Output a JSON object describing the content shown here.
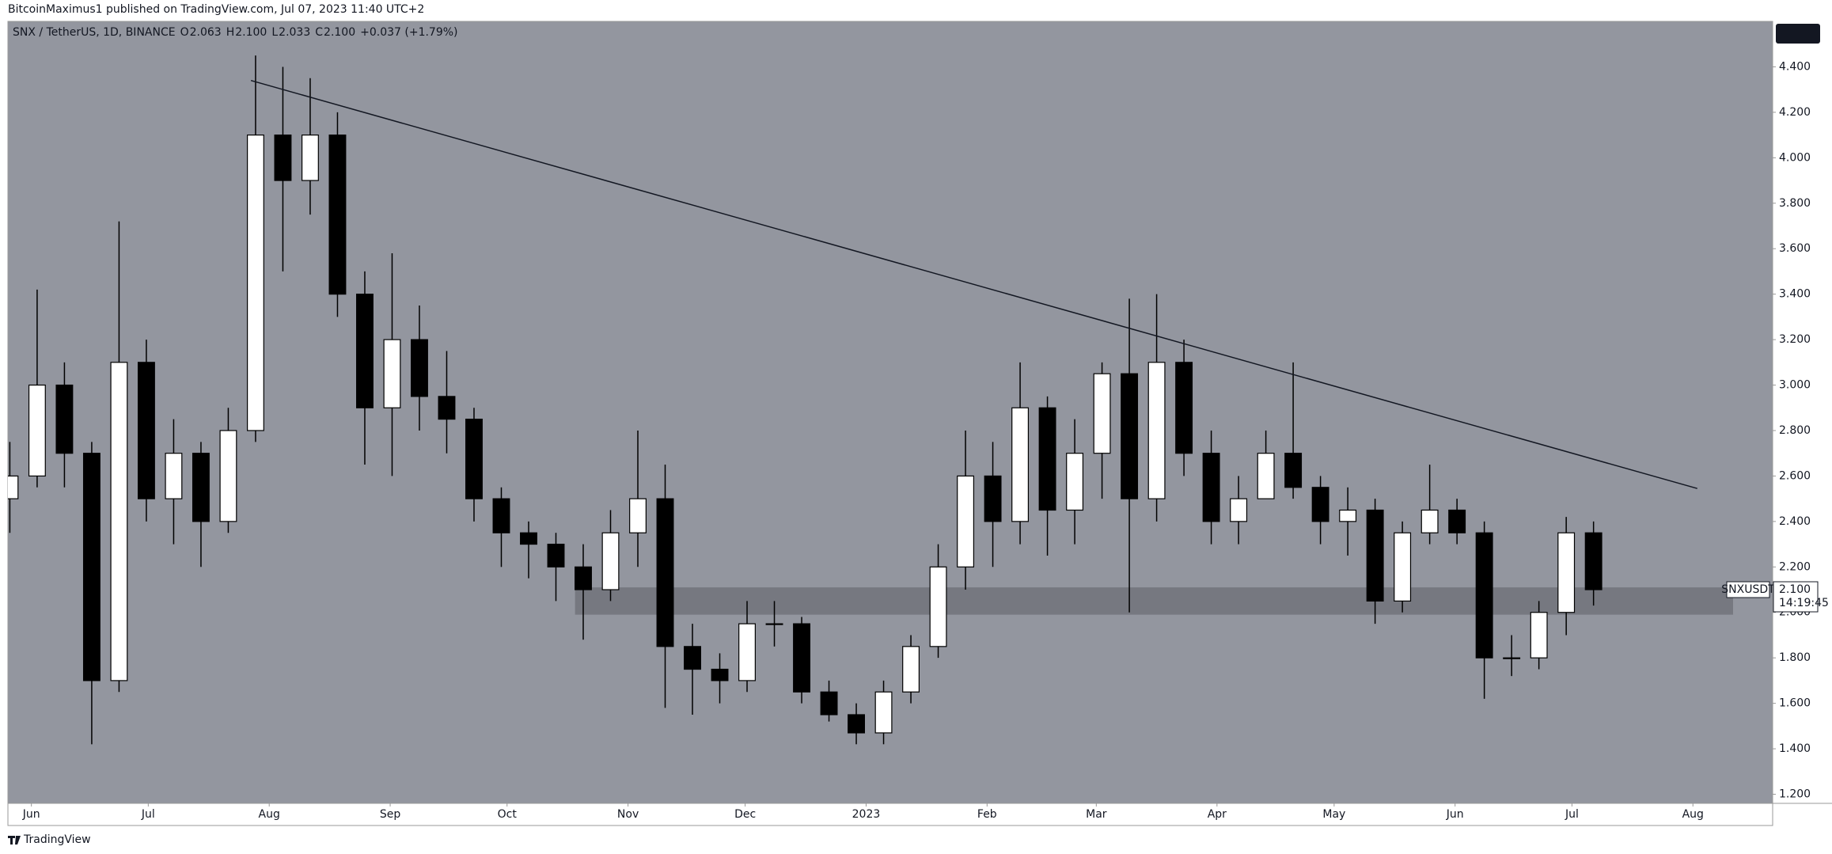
{
  "header": {
    "text": "BitcoinMaximus1 published on TradingView.com, Jul 07, 2023 11:40 UTC+2"
  },
  "footer": {
    "text": "TradingView"
  },
  "chart_data": {
    "type": "candlestick",
    "legend": {
      "symbol": "SNX / TetherUS, 1D, BINANCE",
      "ohlc": [
        {
          "key": "O",
          "text": "2.063"
        },
        {
          "key": "H",
          "text": "2.100"
        },
        {
          "key": "L",
          "text": "2.033"
        },
        {
          "key": "C",
          "text": "2.100"
        }
      ],
      "change": "+0.037 (+1.79%)"
    },
    "open": [
      2.5,
      2.6,
      3.0,
      2.7,
      1.7,
      3.1,
      2.5,
      2.7,
      2.4,
      2.8,
      4.1,
      3.9,
      4.1,
      3.4,
      2.9,
      3.2,
      2.95,
      2.85,
      2.5,
      2.35,
      2.3,
      2.2,
      2.1,
      2.35,
      2.5,
      1.85,
      1.75,
      1.7,
      1.95,
      1.95,
      1.65,
      1.55,
      1.47,
      1.65,
      1.85,
      2.2,
      2.6,
      2.4,
      2.9,
      2.45,
      2.7,
      3.05,
      2.5,
      3.1,
      2.7,
      2.4,
      2.5,
      2.7,
      2.55,
      2.4,
      2.45,
      2.05,
      2.35,
      2.45,
      2.35,
      1.8,
      1.8,
      2.0,
      2.35
    ],
    "high": [
      2.75,
      3.42,
      3.1,
      2.75,
      3.72,
      3.2,
      2.85,
      2.75,
      2.9,
      4.45,
      4.4,
      4.35,
      4.2,
      3.5,
      3.58,
      3.35,
      3.15,
      2.9,
      2.55,
      2.4,
      2.35,
      2.3,
      2.45,
      2.8,
      2.65,
      1.95,
      1.82,
      2.05,
      2.05,
      1.98,
      1.7,
      1.6,
      1.7,
      1.9,
      2.3,
      2.8,
      2.75,
      3.1,
      2.95,
      2.85,
      3.1,
      3.38,
      3.4,
      3.2,
      2.8,
      2.6,
      2.8,
      3.1,
      2.6,
      2.55,
      2.5,
      2.4,
      2.65,
      2.5,
      2.4,
      1.9,
      2.05,
      2.42,
      2.4
    ],
    "low": [
      2.35,
      2.55,
      2.55,
      1.42,
      1.65,
      2.4,
      2.3,
      2.2,
      2.35,
      2.75,
      3.5,
      3.75,
      3.3,
      2.65,
      2.6,
      2.8,
      2.7,
      2.4,
      2.2,
      2.15,
      2.05,
      1.88,
      2.05,
      2.2,
      1.58,
      1.55,
      1.6,
      1.65,
      1.85,
      1.6,
      1.52,
      1.42,
      1.42,
      1.6,
      1.8,
      2.1,
      2.2,
      2.3,
      2.25,
      2.3,
      2.5,
      2.0,
      2.4,
      2.6,
      2.3,
      2.3,
      2.5,
      2.5,
      2.3,
      2.25,
      1.95,
      2.0,
      2.3,
      2.3,
      1.62,
      1.72,
      1.75,
      1.9,
      2.03
    ],
    "close": [
      2.6,
      3.0,
      2.7,
      1.7,
      3.1,
      2.5,
      2.7,
      2.4,
      2.8,
      4.1,
      3.9,
      4.1,
      3.4,
      2.9,
      3.2,
      2.95,
      2.85,
      2.5,
      2.35,
      2.3,
      2.2,
      2.1,
      2.35,
      2.5,
      1.85,
      1.75,
      1.7,
      1.95,
      1.95,
      1.65,
      1.55,
      1.47,
      1.65,
      1.85,
      2.2,
      2.6,
      2.4,
      2.9,
      2.45,
      2.7,
      3.05,
      2.5,
      3.1,
      2.7,
      2.4,
      2.5,
      2.7,
      2.55,
      2.4,
      2.45,
      2.05,
      2.35,
      2.45,
      2.35,
      1.8,
      1.8,
      2.0,
      2.35,
      2.1
    ],
    "up_color": "#ffffff",
    "down_color": "#000000",
    "background": "#93969f",
    "xlim": [
      0.43,
      65.06
    ],
    "xticks": [
      {
        "value": 1.29,
        "label": "Jun"
      },
      {
        "value": 5.57,
        "label": "Jul"
      },
      {
        "value": 10.0,
        "label": "Aug"
      },
      {
        "value": 14.43,
        "label": "Sep"
      },
      {
        "value": 18.71,
        "label": "Oct"
      },
      {
        "value": 23.14,
        "label": "Nov"
      },
      {
        "value": 27.43,
        "label": "Dec"
      },
      {
        "value": 31.86,
        "label": "2023"
      },
      {
        "value": 36.29,
        "label": "Feb"
      },
      {
        "value": 40.29,
        "label": "Mar"
      },
      {
        "value": 44.71,
        "label": "Apr"
      },
      {
        "value": 49.0,
        "label": "May"
      },
      {
        "value": 53.43,
        "label": "Jun"
      },
      {
        "value": 57.71,
        "label": "Jul"
      },
      {
        "value": 62.14,
        "label": "Aug"
      }
    ],
    "ylim": [
      1.16,
      4.6
    ],
    "yticks": [
      {
        "value": 1.2,
        "label": "1.200"
      },
      {
        "value": 1.4,
        "label": "1.400"
      },
      {
        "value": 1.6,
        "label": "1.600"
      },
      {
        "value": 1.8,
        "label": "1.800"
      },
      {
        "value": 2.0,
        "label": "2.000"
      },
      {
        "value": 2.2,
        "label": "2.200"
      },
      {
        "value": 2.4,
        "label": "2.400"
      },
      {
        "value": 2.6,
        "label": "2.600"
      },
      {
        "value": 2.8,
        "label": "2.800"
      },
      {
        "value": 3.0,
        "label": "3.000"
      },
      {
        "value": 3.2,
        "label": "3.200"
      },
      {
        "value": 3.4,
        "label": "3.400"
      },
      {
        "value": 3.6,
        "label": "3.600"
      },
      {
        "value": 3.8,
        "label": "3.800"
      },
      {
        "value": 4.0,
        "label": "4.000"
      },
      {
        "value": 4.2,
        "label": "4.200"
      },
      {
        "value": 4.4,
        "label": "4.400"
      }
    ],
    "trendline": {
      "x": [
        9.33,
        62.3
      ],
      "y": [
        4.34,
        2.545
      ]
    },
    "support_zone": [
      1.99,
      2.11
    ],
    "last_price": {
      "name": "SNXUSDT",
      "price": {
        "value": 2.1,
        "label": "2.100"
      },
      "countdown": "14:19:45"
    }
  }
}
